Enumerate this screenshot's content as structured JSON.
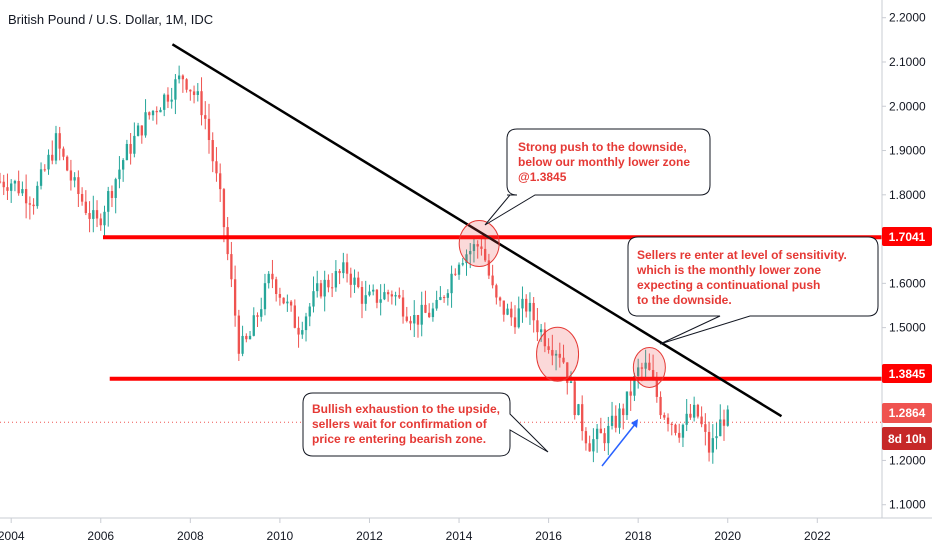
{
  "chart_data": {
    "type": "candlestick",
    "title": "British Pound / U.S. Dollar, 1M, IDC",
    "x_ticks": [
      "2004",
      "2006",
      "2008",
      "2010",
      "2012",
      "2014",
      "2016",
      "2018",
      "2020",
      "2022"
    ],
    "y_ticks": [
      "1.1000",
      "1.2000",
      "1.3000",
      "1.4000",
      "1.5000",
      "1.6000",
      "1.7000",
      "1.8000",
      "1.9000",
      "2.0000",
      "2.1000",
      "2.2000"
    ],
    "ylim": [
      1.07,
      2.24
    ],
    "xlim": [
      2003.75,
      2023.4
    ],
    "series": [
      {
        "type": "close",
        "x": [
          2004.0,
          2004.5,
          2005.0,
          2005.4,
          2005.9,
          2006.5,
          2007.0,
          2007.5,
          2007.85,
          2008.3,
          2008.7,
          2009.1,
          2009.3,
          2009.8,
          2010.4,
          2010.9,
          2011.5,
          2011.9,
          2012.5,
          2013.0,
          2013.5,
          2014.0,
          2014.5,
          2014.8,
          2015.2,
          2015.5,
          2015.9,
          2016.3,
          2016.6,
          2016.9,
          2017.3,
          2017.7,
          2018.0,
          2018.2,
          2018.5,
          2018.9,
          2019.3,
          2019.6,
          2019.9,
          2020.05
        ],
        "values": [
          1.83,
          1.79,
          1.92,
          1.82,
          1.73,
          1.88,
          1.97,
          2.03,
          2.07,
          1.99,
          1.77,
          1.45,
          1.47,
          1.62,
          1.5,
          1.59,
          1.63,
          1.56,
          1.58,
          1.52,
          1.54,
          1.66,
          1.69,
          1.56,
          1.52,
          1.55,
          1.48,
          1.44,
          1.32,
          1.24,
          1.26,
          1.32,
          1.4,
          1.41,
          1.32,
          1.27,
          1.31,
          1.22,
          1.3,
          1.2864
        ]
      }
    ],
    "levels": [
      {
        "label": "1.7041",
        "value": 1.7041,
        "color": "#ff0000"
      },
      {
        "label": "1.3845",
        "value": 1.3845,
        "color": "#ff0000"
      }
    ],
    "current_price": {
      "label": "1.2864",
      "value": 1.2864,
      "countdown": "8d 10h"
    },
    "trendline": {
      "x": [
        2007.6,
        2021.2
      ],
      "y": [
        2.14,
        1.3
      ],
      "color": "#000000"
    },
    "annotations": [
      "Strong push to the downside,",
      "below our monthly lower zone",
      "@1.3845",
      "Sellers re enter at level of sensitivity.",
      "which is the monthly lower zone",
      "expecting a continuational push",
      "to the downside.",
      "Bullish exhaustion to the upside,",
      "sellers wait for confirmation of",
      "price re entering bearish zone."
    ],
    "grid": false,
    "colors": {
      "up": "#26a69a",
      "down": "#ef5350",
      "level": "#ff0000",
      "note_text": "#e53935"
    }
  }
}
